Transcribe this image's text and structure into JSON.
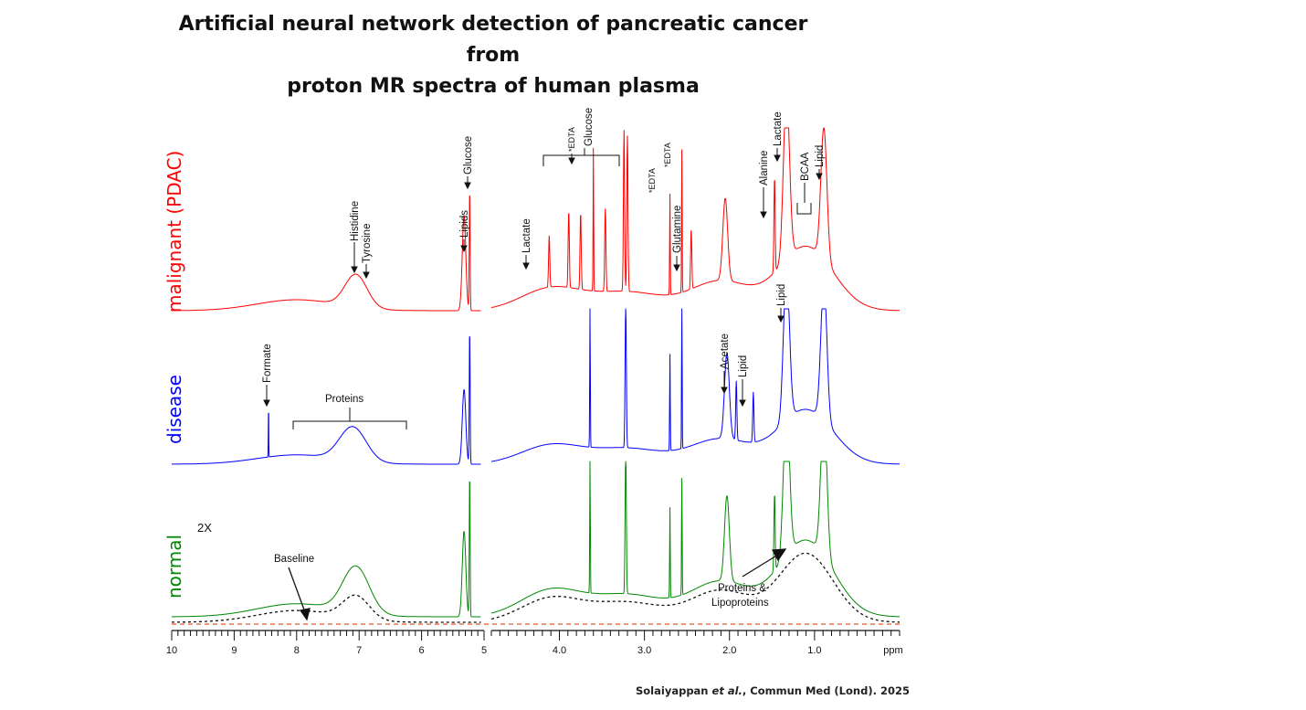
{
  "title": {
    "line1": "Artificial neural network detection of pancreatic cancer from",
    "line2": "proton MR spectra of human plasma"
  },
  "citation": {
    "authors": "Solaiyappan",
    "etal": "et al.",
    "source": ", Commun Med (Lond). 2025"
  },
  "chart_data": {
    "type": "line",
    "x_unit": "ppm",
    "xlim": [
      10,
      0
    ],
    "ticks_left": [
      "10",
      "9",
      "8",
      "7",
      "6",
      "5"
    ],
    "ticks_right": [
      "4.0",
      "3.0",
      "2.0",
      "1.0"
    ],
    "scale_change_ppm": 5.0,
    "series": [
      {
        "name": "malignant (PDAC)",
        "color": "#ff0000",
        "peaks": [
          {
            "ppm": 7.05,
            "height": 0.18,
            "width": 0.25
          },
          {
            "ppm": 5.32,
            "height": 0.52,
            "width": 0.04
          },
          {
            "ppm": 5.23,
            "height": 0.65,
            "width": 0.01
          },
          {
            "ppm": 4.12,
            "height": 0.28,
            "width": 0.01
          },
          {
            "ppm": 3.89,
            "height": 0.42,
            "width": 0.01
          },
          {
            "ppm": 3.75,
            "height": 0.42,
            "width": 0.01
          },
          {
            "ppm": 3.6,
            "height": 0.78,
            "width": 0.005
          },
          {
            "ppm": 3.46,
            "height": 0.45,
            "width": 0.01
          },
          {
            "ppm": 3.24,
            "height": 0.88,
            "width": 0.01
          },
          {
            "ppm": 3.2,
            "height": 0.85,
            "width": 0.01
          },
          {
            "ppm": 2.7,
            "height": 0.55,
            "width": 0.005
          },
          {
            "ppm": 2.56,
            "height": 0.78,
            "width": 0.005
          },
          {
            "ppm": 2.45,
            "height": 0.33,
            "width": 0.01
          },
          {
            "ppm": 2.05,
            "height": 0.45,
            "width": 0.04
          },
          {
            "ppm": 1.47,
            "height": 0.52,
            "width": 0.01
          },
          {
            "ppm": 1.33,
            "height": 0.92,
            "width": 0.05
          },
          {
            "ppm": 0.89,
            "height": 0.72,
            "width": 0.05
          }
        ]
      },
      {
        "name": "disease",
        "color": "#0000ff",
        "peaks": [
          {
            "ppm": 8.45,
            "height": 0.33,
            "width": 0.005
          },
          {
            "ppm": 7.1,
            "height": 0.22,
            "width": 0.3
          },
          {
            "ppm": 5.32,
            "height": 0.48,
            "width": 0.04
          },
          {
            "ppm": 5.23,
            "height": 0.85,
            "width": 0.01
          },
          {
            "ppm": 3.64,
            "height": 0.92,
            "width": 0.005
          },
          {
            "ppm": 3.22,
            "height": 0.95,
            "width": 0.01
          },
          {
            "ppm": 2.7,
            "height": 0.62,
            "width": 0.005
          },
          {
            "ppm": 2.56,
            "height": 0.9,
            "width": 0.005
          },
          {
            "ppm": 2.03,
            "height": 0.55,
            "width": 0.04
          },
          {
            "ppm": 1.92,
            "height": 0.38,
            "width": 0.01
          },
          {
            "ppm": 1.72,
            "height": 0.32,
            "width": 0.01
          },
          {
            "ppm": 1.33,
            "height": 0.97,
            "width": 0.05
          },
          {
            "ppm": 0.89,
            "height": 0.9,
            "width": 0.05
          }
        ]
      },
      {
        "name": "normal",
        "color": "#008800",
        "peaks": [
          {
            "ppm": 7.05,
            "height": 0.3,
            "width": 0.3
          },
          {
            "ppm": 5.32,
            "height": 0.55,
            "width": 0.04
          },
          {
            "ppm": 5.23,
            "height": 0.9,
            "width": 0.01
          },
          {
            "ppm": 3.64,
            "height": 0.92,
            "width": 0.005
          },
          {
            "ppm": 3.22,
            "height": 0.95,
            "width": 0.01
          },
          {
            "ppm": 2.7,
            "height": 0.58,
            "width": 0.005
          },
          {
            "ppm": 2.56,
            "height": 0.75,
            "width": 0.005
          },
          {
            "ppm": 2.03,
            "height": 0.55,
            "width": 0.04
          },
          {
            "ppm": 1.47,
            "height": 0.5,
            "width": 0.01
          },
          {
            "ppm": 1.33,
            "height": 0.97,
            "width": 0.05
          },
          {
            "ppm": 0.89,
            "height": 0.95,
            "width": 0.05
          }
        ]
      }
    ],
    "baseline_label": "Baseline",
    "scale_note": "2X",
    "annotations": {
      "malignant": [
        "Histidine",
        "Tyrosine",
        "Lipids",
        "Glucose",
        "Lactate",
        "*EDTA",
        "Glucose",
        "*EDTA",
        "*EDTA",
        "Glutamine",
        "Alanine",
        "Lactate",
        "BCAA",
        "Lipid"
      ],
      "disease": [
        "Formate",
        "Proteins",
        "Acetate",
        "Lipid",
        "Lipid"
      ],
      "normal": [
        "Proteins &",
        "Lipoproteins"
      ]
    }
  }
}
